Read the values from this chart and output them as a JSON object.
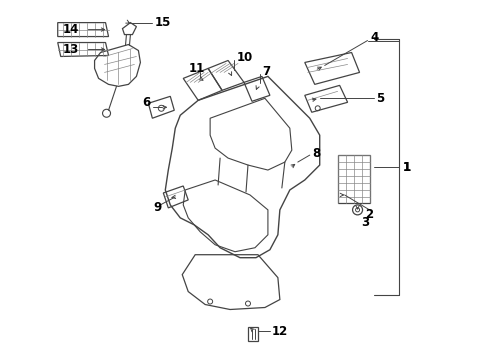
{
  "bg_color": "#ffffff",
  "line_color": "#444444",
  "text_color": "#000000",
  "label_fontsize": 8.5,
  "figsize": [
    4.9,
    3.6
  ],
  "dpi": 100
}
